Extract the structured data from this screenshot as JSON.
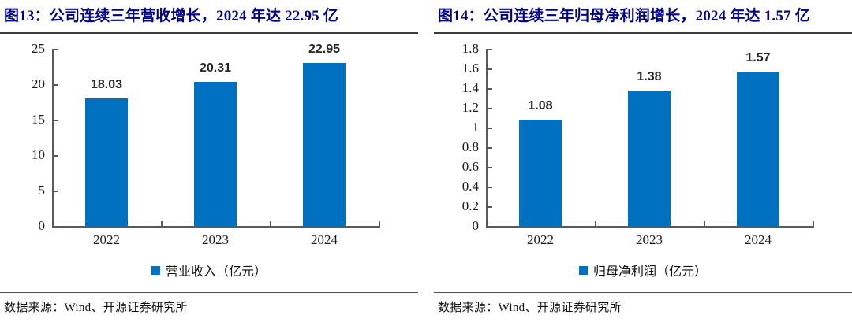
{
  "panels": [
    {
      "title": "图13：公司连续三年营收增长，2024 年达 22.95 亿",
      "legend": "营业收入（亿元）",
      "source": "数据来源：Wind、开源证券研究所"
    },
    {
      "title": "图14：公司连续三年归母净利润增长，2024 年达 1.57 亿",
      "legend": "归母净利润（亿元）",
      "source": "数据来源：Wind、开源证券研究所"
    }
  ],
  "colors": {
    "bar": "#0070C0",
    "title": "#000085",
    "axis": "#595959",
    "text": "#1a1a1a"
  },
  "chart_data": [
    {
      "type": "bar",
      "title": "图13：公司连续三年营收增长，2024 年达 22.95 亿",
      "categories": [
        "2022",
        "2023",
        "2024"
      ],
      "values": [
        18.03,
        20.31,
        22.95
      ],
      "series_name": "营业收入（亿元）",
      "xlabel": "",
      "ylabel": "",
      "ylim": [
        0,
        25
      ],
      "ytick_step": 5,
      "grid": false,
      "legend_position": "bottom",
      "data_labels": true
    },
    {
      "type": "bar",
      "title": "图14：公司连续三年归母净利润增长，2024 年达 1.57 亿",
      "categories": [
        "2022",
        "2023",
        "2024"
      ],
      "values": [
        1.08,
        1.38,
        1.57
      ],
      "series_name": "归母净利润（亿元）",
      "xlabel": "",
      "ylabel": "",
      "ylim": [
        0,
        1.8
      ],
      "ytick_step": 0.2,
      "grid": false,
      "legend_position": "bottom",
      "data_labels": true
    }
  ]
}
